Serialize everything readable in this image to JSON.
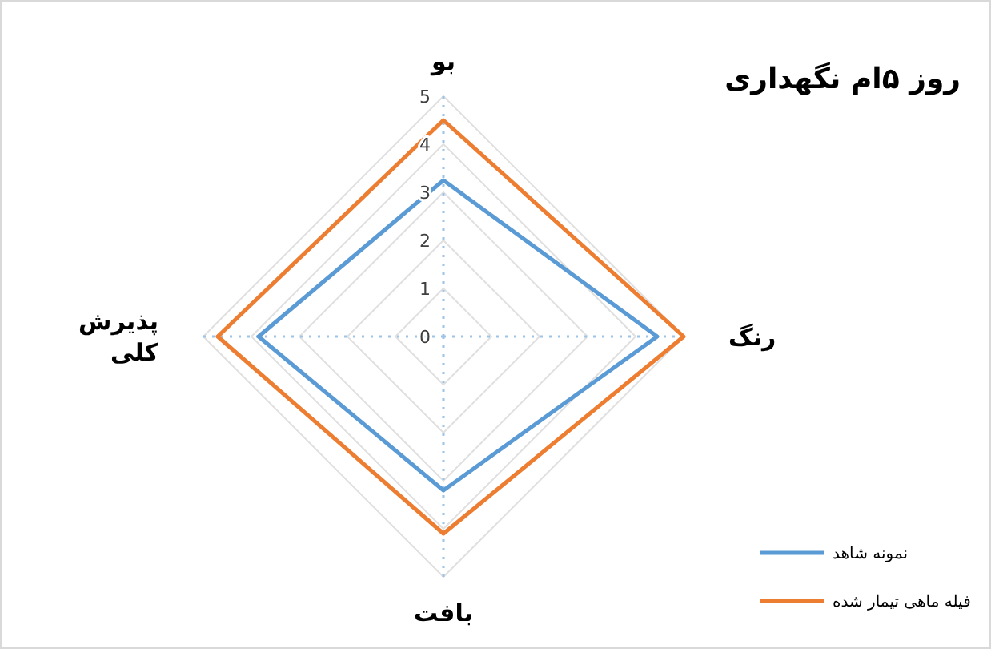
{
  "chart_data": {
    "type": "radar",
    "title": "روز ۵ام نگهداری",
    "categories": [
      "بو",
      "رنگ",
      "بافت",
      "پذیرش کلی"
    ],
    "series": [
      {
        "name": "نمونه شاهد",
        "color": "#5b9bd5",
        "values": [
          3.25,
          4.45,
          3.2,
          3.85
        ]
      },
      {
        "name": "فیله ماهی تیمار شده",
        "color": "#ed7d31",
        "values": [
          4.5,
          5,
          4.1,
          4.7
        ]
      }
    ],
    "ylim": [
      0,
      5
    ],
    "yticks": [
      0,
      1,
      2,
      3,
      4,
      5
    ],
    "grid": true,
    "legend": "bottom right"
  }
}
